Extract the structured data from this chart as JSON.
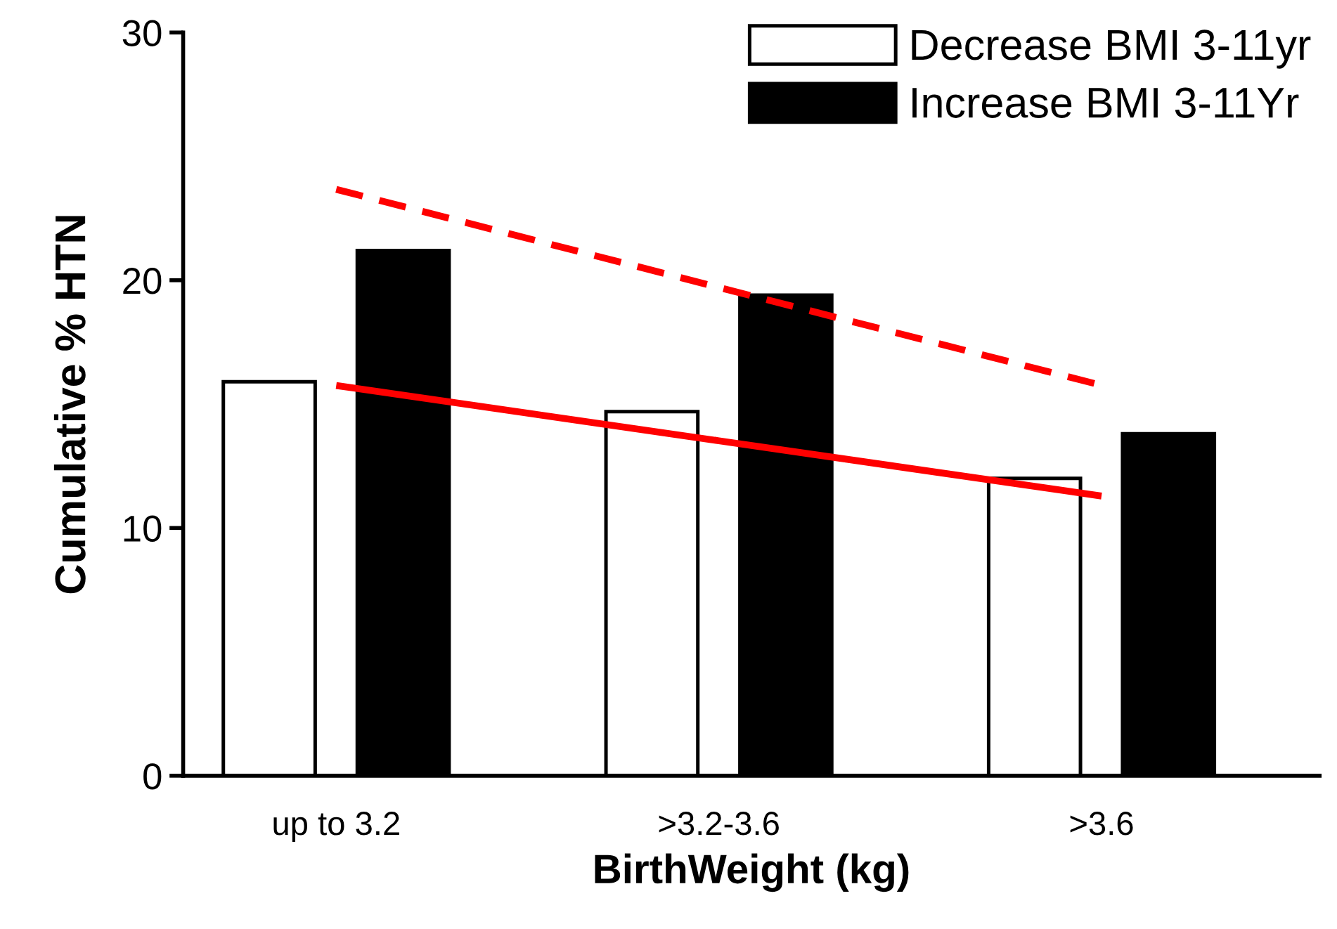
{
  "chart_data": {
    "type": "bar",
    "xlabel": "BirthWeight (kg)",
    "ylabel": "Cumulative % HTN",
    "categories": [
      "up to 3.2",
      ">3.2-3.6",
      ">3.6"
    ],
    "series": [
      {
        "name": "Decrease BMI 3-11yr",
        "color": "#ffffff",
        "values": [
          15.9,
          14.7,
          12.0
        ]
      },
      {
        "name": "Increase BMI 3-11Yr",
        "color": "#000000",
        "values": [
          21.2,
          19.4,
          13.8
        ]
      },
      {
        "type": "line",
        "color": "#ff0000",
        "values": [
          15.75,
          13.52,
          11.29
        ],
        "line_style": "solid"
      },
      {
        "type": "line",
        "color": "#ff0000",
        "values": [
          23.67,
          19.71,
          15.76
        ],
        "line_style": "dashed"
      }
    ],
    "ylim": [
      0,
      30
    ],
    "yticks": [
      0,
      10,
      20,
      30
    ],
    "grid": false,
    "legend": "top right"
  }
}
